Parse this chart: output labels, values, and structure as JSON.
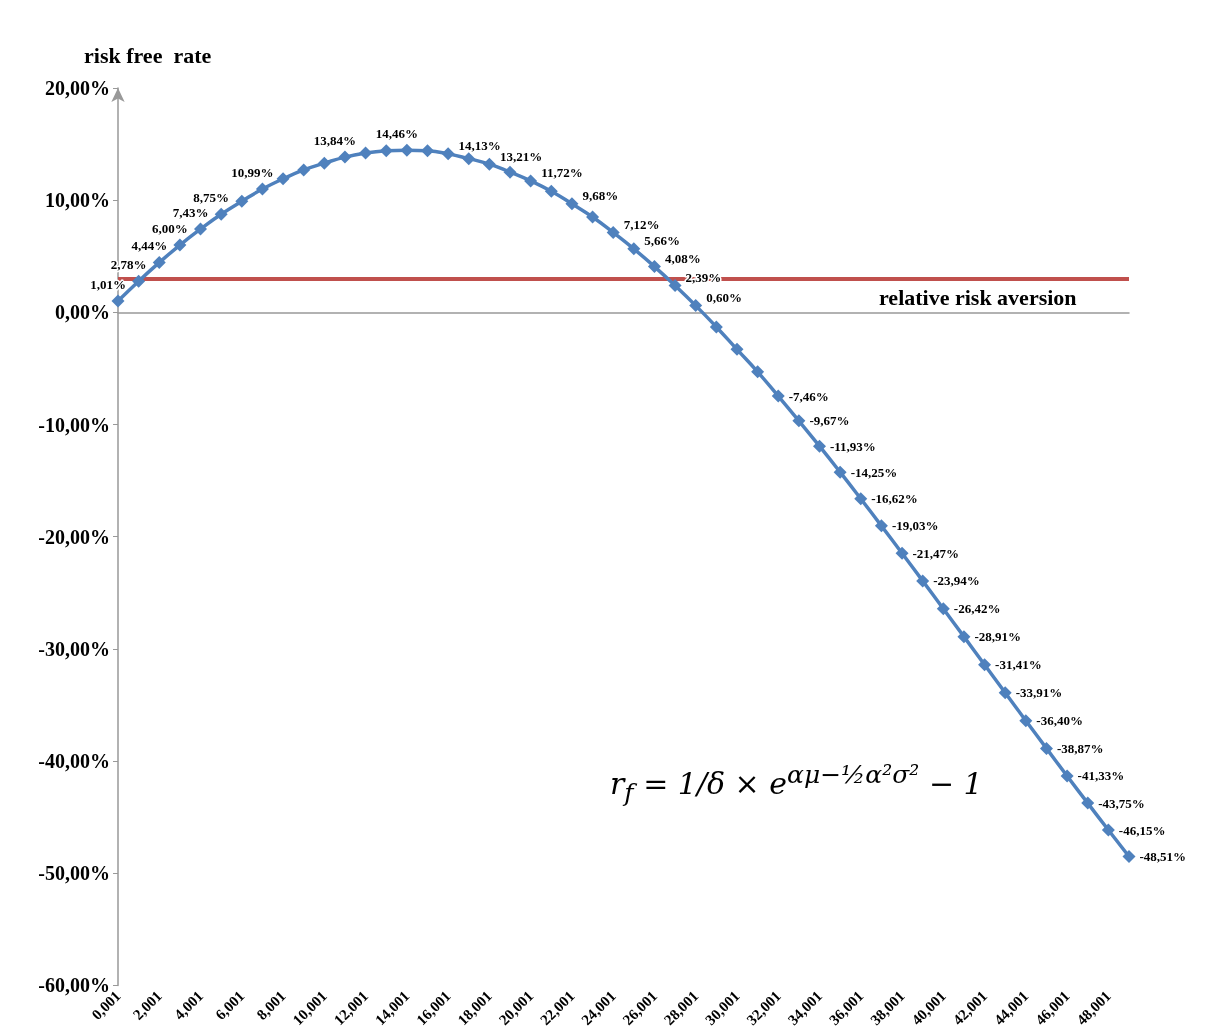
{
  "chart_data": {
    "type": "line",
    "xlabel": "relative risk aversion",
    "ylabel": "risk free  rate",
    "categories": [
      "0,001",
      null,
      "2,001",
      null,
      "4,001",
      null,
      "6,001",
      null,
      "8,001",
      null,
      "10,001",
      null,
      "12,001",
      null,
      "14,001",
      null,
      "16,001",
      null,
      "18,001",
      null,
      "20,001",
      null,
      "22,001",
      null,
      "24,001",
      null,
      "26,001",
      null,
      "28,001",
      null,
      "30,001",
      null,
      "32,001",
      null,
      "34,001",
      null,
      "36,001",
      null,
      "38,001",
      null,
      "40,001",
      null,
      "42,001",
      null,
      "44,001",
      null,
      "46,001",
      null,
      "48,001",
      null
    ],
    "series": [
      {
        "color": "#4f81bd",
        "values": [
          1.01,
          2.78,
          4.44,
          6.0,
          7.43,
          8.75,
          9.9,
          10.99,
          11.9,
          12.7,
          13.3,
          13.84,
          14.2,
          14.4,
          14.46,
          14.4,
          14.13,
          13.7,
          13.21,
          12.5,
          11.72,
          10.8,
          9.68,
          8.5,
          7.12,
          5.66,
          4.08,
          2.39,
          0.6,
          -1.3,
          -3.3,
          -5.3,
          -7.46,
          -9.67,
          -11.93,
          -14.25,
          -16.62,
          -19.03,
          -21.47,
          -23.94,
          -26.42,
          -28.91,
          -31.41,
          -33.91,
          -36.4,
          -38.87,
          -41.33,
          -43.75,
          -46.15,
          -48.51
        ],
        "value_labels": [
          "1,01%",
          "2,78%",
          "4,44%",
          "6,00%",
          "7,43%",
          "8,75%",
          null,
          "10,99%",
          null,
          null,
          null,
          "13,84%",
          null,
          null,
          "14,46%",
          null,
          "14,13%",
          null,
          "13,21%",
          null,
          "11,72%",
          null,
          "9,68%",
          null,
          "7,12%",
          "5,66%",
          "4,08%",
          "2,39%",
          "0,60%",
          null,
          null,
          null,
          "-7,46%",
          "-9,67%",
          "-11,93%",
          "-14,25%",
          "-16,62%",
          "-19,03%",
          "-21,47%",
          "-23,94%",
          "-26,42%",
          "-28,91%",
          "-31,41%",
          "-33,91%",
          "-36,40%",
          "-38,87%",
          "-41,33%",
          "-43,75%",
          "-46,15%",
          "-48,51%"
        ]
      }
    ],
    "ylim": [
      -60,
      20
    ],
    "yticks": [
      {
        "value": -60,
        "label": "-60,00%"
      },
      {
        "value": -50,
        "label": "-50,00%"
      },
      {
        "value": -40,
        "label": "-40,00%"
      },
      {
        "value": -30,
        "label": "-30,00%"
      },
      {
        "value": -20,
        "label": "-20,00%"
      },
      {
        "value": -10,
        "label": "-10,00%"
      },
      {
        "value": 0,
        "label": "0,00%"
      },
      {
        "value": 10,
        "label": "10,00%"
      },
      {
        "value": 20,
        "label": "20,00%"
      }
    ],
    "ref_lines": [
      {
        "axis": "y",
        "value": 3,
        "color": "#c0504d"
      }
    ],
    "marker": "diamond",
    "line_style": "solid",
    "annotations": [
      "r$_{f}$ = 1/δ × e$^{αμ−½α²σ²}$ − 1"
    ]
  }
}
